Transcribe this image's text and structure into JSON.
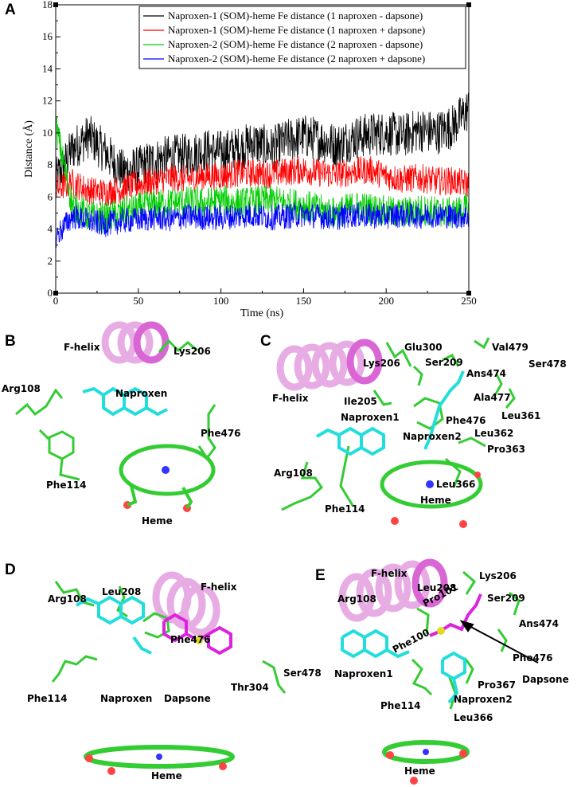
{
  "panel_letters": [
    "A",
    "B",
    "C",
    "D",
    "E"
  ],
  "chart_data": {
    "type": "line",
    "xlabel": "Time (ns)",
    "ylabel": "Distance (Å)",
    "xlim": [
      0,
      250
    ],
    "ylim": [
      0,
      18
    ],
    "xticks": [
      "0",
      "50",
      "100",
      "150",
      "200",
      "250"
    ],
    "yticks": [
      "0",
      "2",
      "4",
      "6",
      "8",
      "10",
      "12",
      "14",
      "16",
      "18"
    ],
    "grid": false,
    "legend_position": "top-right",
    "series": [
      {
        "name": "Naproxen-1 (SOM)-heme Fe distance (1 naproxen - dapsone)",
        "color": "#000000",
        "x": [
          0,
          10,
          20,
          30,
          40,
          50,
          60,
          70,
          80,
          90,
          100,
          110,
          120,
          130,
          140,
          150,
          160,
          170,
          180,
          190,
          200,
          210,
          220,
          230,
          240,
          250
        ],
        "y": [
          7.0,
          9.0,
          9.8,
          8.8,
          7.6,
          7.8,
          8.3,
          8.5,
          8.6,
          8.9,
          8.8,
          9.0,
          9.4,
          9.0,
          9.5,
          9.8,
          9.6,
          9.2,
          9.7,
          9.9,
          10.0,
          9.8,
          10.2,
          10.0,
          10.4,
          11.5
        ]
      },
      {
        "name": "Naproxen-1 (SOM)-heme Fe distance (1 naproxen + dapsone)",
        "color": "#ff0000",
        "x": [
          0,
          10,
          20,
          30,
          40,
          50,
          60,
          70,
          80,
          90,
          100,
          110,
          120,
          130,
          140,
          150,
          160,
          170,
          180,
          190,
          200,
          210,
          220,
          230,
          240,
          250
        ],
        "y": [
          6.5,
          6.9,
          6.4,
          6.3,
          6.5,
          6.8,
          7.0,
          7.2,
          7.1,
          7.3,
          7.3,
          7.5,
          7.5,
          7.4,
          7.6,
          7.7,
          7.5,
          7.4,
          7.6,
          7.7,
          7.3,
          7.1,
          7.2,
          7.0,
          7.0,
          6.8
        ]
      },
      {
        "name": "Naproxen-2 (SOM)-heme Fe distance (2 naproxen - dapsone)",
        "color": "#00cc00",
        "x": [
          0,
          10,
          20,
          30,
          40,
          50,
          60,
          70,
          80,
          90,
          100,
          110,
          120,
          130,
          140,
          150,
          160,
          170,
          180,
          190,
          200,
          210,
          220,
          230,
          240,
          250
        ],
        "y": [
          10.5,
          5.5,
          4.8,
          4.7,
          5.0,
          5.3,
          5.5,
          5.6,
          5.7,
          5.6,
          5.8,
          5.6,
          5.7,
          5.8,
          5.6,
          5.5,
          5.2,
          5.0,
          5.4,
          5.3,
          5.1,
          5.0,
          5.2,
          5.1,
          5.0,
          5.3
        ]
      },
      {
        "name": "Naproxen-2 (SOM)-heme Fe distance (2 naproxen + dapsone)",
        "color": "#0000ff",
        "x": [
          0,
          10,
          20,
          30,
          40,
          50,
          60,
          70,
          80,
          90,
          100,
          110,
          120,
          130,
          140,
          150,
          160,
          170,
          180,
          190,
          200,
          210,
          220,
          230,
          240,
          250
        ],
        "y": [
          3.5,
          4.8,
          4.5,
          4.3,
          4.5,
          4.6,
          4.7,
          4.6,
          4.8,
          4.7,
          4.7,
          4.8,
          4.9,
          4.7,
          4.8,
          4.9,
          4.8,
          4.7,
          4.9,
          4.8,
          4.8,
          4.9,
          4.8,
          4.9,
          4.8,
          4.8
        ]
      }
    ]
  },
  "panels": {
    "B": {
      "labels": [
        "F-helix",
        "Lys206",
        "Arg108",
        "Naproxen",
        "Phe476",
        "Phe114",
        "Heme"
      ]
    },
    "C": {
      "labels": [
        "Glu300",
        "Val479",
        "Lys206",
        "Ser209",
        "Ans474",
        "Ser478",
        "F-helix",
        "Ala477",
        "Ile205",
        "Leu361",
        "Naproxen1",
        "Phe476",
        "Leu362",
        "Naproxen2",
        "Pro363",
        "Arg108",
        "Leu366",
        "Heme",
        "Phe114"
      ]
    },
    "D": {
      "labels": [
        "Arg108",
        "Leu208",
        "F-helix",
        "Phe476",
        "Ser478",
        "Thr304",
        "Phe114",
        "Naproxen",
        "Dapsone",
        "Heme"
      ]
    },
    "E": {
      "labels": [
        "F-helix",
        "Lys206",
        "Leu208",
        "Arg108",
        "Ser209",
        "Pro101",
        "Ans474",
        "Phe100",
        "Phe476",
        "Naproxen1",
        "Dapsone",
        "Pro367",
        "Naproxen2",
        "Phe114",
        "Leu366",
        "Heme"
      ]
    }
  }
}
